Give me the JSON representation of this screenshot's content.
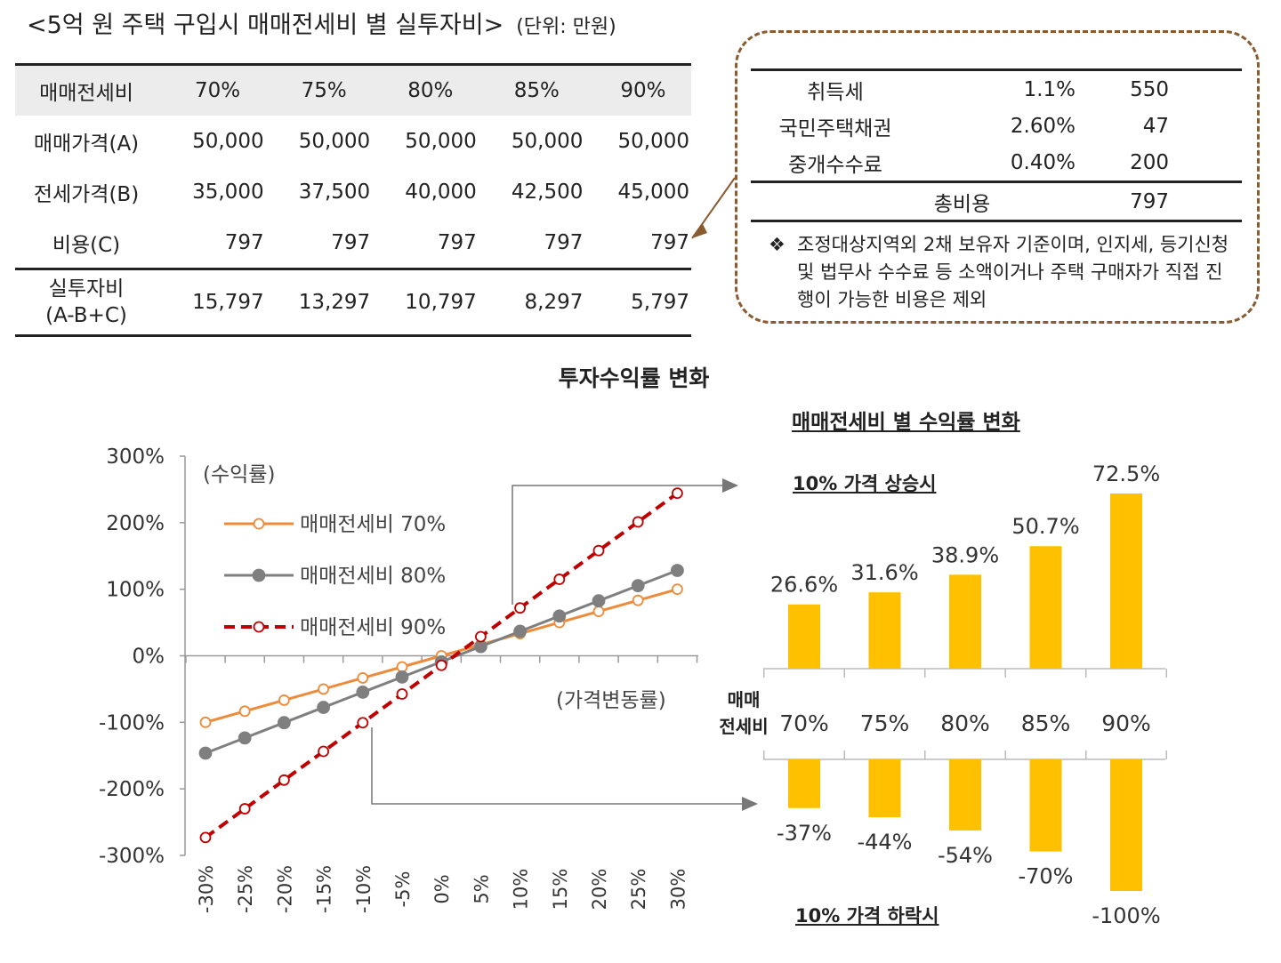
{
  "header": {
    "title": "<5억 원 주택 구입시 매매전세비 별 실투자비>",
    "unit": "(단위: 만원)"
  },
  "table": {
    "columns": [
      "매매전세비",
      "70%",
      "75%",
      "80%",
      "85%",
      "90%"
    ],
    "rows": [
      {
        "label": "매매가격(A)",
        "values": [
          "50,000",
          "50,000",
          "50,000",
          "50,000",
          "50,000"
        ]
      },
      {
        "label": "전세가격(B)",
        "values": [
          "35,000",
          "37,500",
          "40,000",
          "42,500",
          "45,000"
        ]
      },
      {
        "label": "비용(C)",
        "values": [
          "797",
          "797",
          "797",
          "797",
          "797"
        ]
      }
    ],
    "total": {
      "label_line1": "실투자비",
      "label_line2": "(A-B+C)",
      "values": [
        "15,797",
        "13,297",
        "10,797",
        "8,297",
        "5,797"
      ]
    }
  },
  "cost_table": {
    "rows": [
      {
        "label": "취득세",
        "rate": "1.1%",
        "amount": "550"
      },
      {
        "label": "국민주택채권",
        "rate": "2.60%",
        "amount": "47"
      },
      {
        "label": "중개수수료",
        "rate": "0.40%",
        "amount": "200"
      }
    ],
    "total": {
      "label": "총비용",
      "amount": "797"
    },
    "note_bullet": "❖",
    "note": "조정대상지역외 2채 보유자 기준이며, 인지세, 등기신청 및 법무사 수수료 등 소액이거나 주택 구매자가 직접 진행이 가능한 비용은 제외"
  },
  "chart_title": "투자수익률 변화",
  "chart_data": [
    {
      "type": "line",
      "ylabel": "(수익률)",
      "xlabel": "(가격변동률)",
      "x": [
        "-30%",
        "-25%",
        "-20%",
        "-15%",
        "-10%",
        "-5%",
        "0%",
        "5%",
        "10%",
        "15%",
        "20%",
        "25%",
        "30%"
      ],
      "y_ticks": [
        "300%",
        "200%",
        "100%",
        "0%",
        "-100%",
        "-200%",
        "-300%"
      ],
      "ylim": [
        -300,
        300
      ],
      "legend_position": "top-left",
      "series": [
        {
          "name": "매매전세비 70%",
          "color": "#ed8b3a",
          "marker": "open-circle",
          "values": [
            -100,
            -83.3,
            -66.7,
            -50,
            -33.3,
            -16.7,
            0,
            16.7,
            33.3,
            50,
            66.7,
            83.3,
            100
          ]
        },
        {
          "name": "매매전세비 80%",
          "color": "#7f7f7f",
          "marker": "filled-circle",
          "values": [
            -146.3,
            -123.4,
            -100.5,
            -77.6,
            -54.7,
            -31.9,
            -9,
            13.9,
            36.8,
            59.7,
            82.6,
            105.4,
            128.3
          ]
        },
        {
          "name": "매매전세비 90%",
          "color": "#c00000",
          "marker": "open-circle",
          "dashed": true,
          "values": [
            -273.1,
            -229.9,
            -186.8,
            -143.7,
            -100.6,
            -57.5,
            -14.4,
            28.7,
            71.9,
            115,
            158.1,
            201.2,
            244.3
          ]
        }
      ]
    },
    {
      "type": "bar",
      "title": "매매전세비 별 수익률 변화",
      "category_axis_label": "매매 전세비",
      "category_axis_label_line1": "매매",
      "category_axis_label_line2": "전세비",
      "categories": [
        "70%",
        "75%",
        "80%",
        "85%",
        "90%"
      ],
      "color": "#ffc000",
      "series": [
        {
          "name": "10% 가격 상승시",
          "values": [
            26.6,
            31.6,
            38.9,
            50.7,
            72.5
          ],
          "labels": [
            "26.6%",
            "31.6%",
            "38.9%",
            "50.7%",
            "72.5%"
          ]
        },
        {
          "name": "10% 가격 하락시",
          "values": [
            -37,
            -44,
            -54,
            -70,
            -100
          ],
          "labels": [
            "-37%",
            "-44%",
            "-54%",
            "-70%",
            "-100%"
          ]
        }
      ]
    }
  ]
}
